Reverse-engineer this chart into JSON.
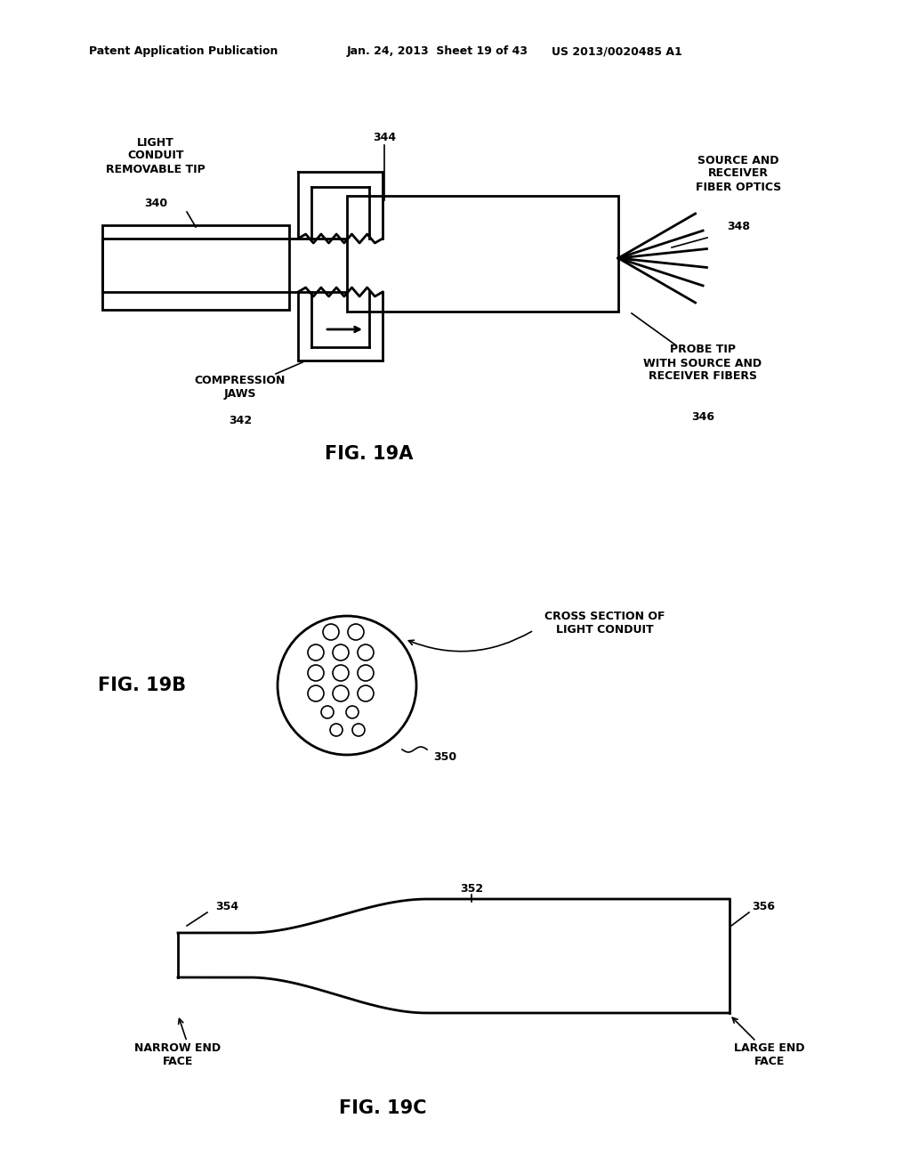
{
  "bg_color": "#ffffff",
  "header_left": "Patent Application Publication",
  "header_mid": "Jan. 24, 2013  Sheet 19 of 43",
  "header_right": "US 2013/0020485 A1",
  "fig19a_label": "FIG. 19A",
  "fig19b_label": "FIG. 19B",
  "fig19c_label": "FIG. 19C",
  "lc_label": "LIGHT\nCONDUIT\nREMOVABLE TIP",
  "lc_num": "340",
  "sr_label": "SOURCE AND\nRECEIVER\nFIBER OPTICS",
  "sr_num": "348",
  "comp_label": "COMPRESSION\nJAWS",
  "comp_num": "342",
  "probe_label": "PROBE TIP\nWITH SOURCE AND\nRECEIVER FIBERS",
  "probe_num": "346",
  "num_344": "344",
  "cs_label": "CROSS SECTION OF\nLIGHT CONDUIT",
  "num_350": "350",
  "num_352": "352",
  "num_354": "354",
  "num_356": "356",
  "narrow_label": "NARROW END\nFACE",
  "large_label": "LARGE END\nFACE",
  "font_header": 9,
  "font_label": 9,
  "font_fig": 15
}
